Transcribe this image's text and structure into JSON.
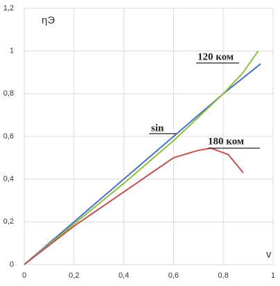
{
  "chart_data": {
    "type": "line",
    "x_label": "v",
    "y_label": "ηЭ",
    "xlim": [
      0,
      1
    ],
    "ylim": [
      0,
      1.2
    ],
    "xticks": [
      0,
      {
        "value": 0.2,
        "label": "0,2"
      },
      {
        "value": 0.4,
        "label": "0,4"
      },
      {
        "value": 0.6,
        "label": "0,6"
      },
      {
        "value": 0.8,
        "label": "0,8"
      },
      1
    ],
    "yticks": [
      0,
      {
        "value": 0.2,
        "label": "0,2"
      },
      {
        "value": 0.4,
        "label": "0,4"
      },
      {
        "value": 0.6,
        "label": "0,6"
      },
      {
        "value": 0.8,
        "label": "0,8"
      },
      1,
      {
        "value": 1.2,
        "label": "1,2"
      }
    ],
    "grid": true,
    "series": [
      {
        "name": "sin",
        "color": "#4472c4",
        "x": [
          0,
          0.2,
          0.4,
          0.6,
          0.8,
          0.95
        ],
        "values": [
          0,
          0.2,
          0.4,
          0.6,
          0.8,
          0.94
        ]
      },
      {
        "name": "120 ком",
        "color": "#8fbc3c",
        "x": [
          0,
          0.2,
          0.4,
          0.6,
          0.8,
          0.88,
          0.94
        ],
        "values": [
          0,
          0.19,
          0.38,
          0.58,
          0.8,
          0.9,
          1.0
        ]
      },
      {
        "name": "180 ком",
        "color": "#c0504d",
        "x": [
          0,
          0.2,
          0.4,
          0.5,
          0.6,
          0.7,
          0.75,
          0.82,
          0.88
        ],
        "values": [
          0,
          0.18,
          0.34,
          0.42,
          0.5,
          0.535,
          0.545,
          0.515,
          0.43
        ]
      }
    ]
  }
}
